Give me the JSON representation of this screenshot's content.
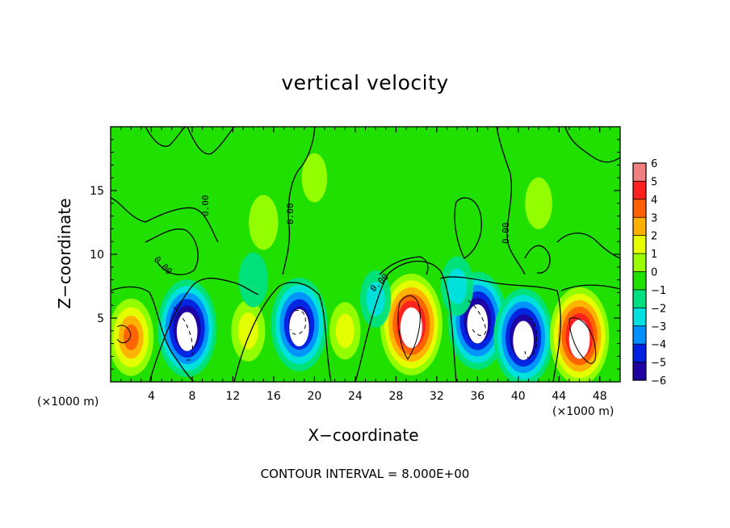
{
  "chart_data": {
    "type": "heatmap",
    "title": "vertical velocity",
    "xlabel": "X−coordinate",
    "ylabel": "Z−coordinate",
    "x_unit_label": "(×1000 m)",
    "x_unit_label_right": "(×1000 m)",
    "xlim": [
      0,
      50
    ],
    "ylim": [
      0,
      20
    ],
    "x_ticks": [
      4,
      8,
      12,
      16,
      20,
      24,
      28,
      32,
      36,
      40,
      44,
      48
    ],
    "y_ticks": [
      5,
      10,
      15
    ],
    "colorbar": {
      "levels": [
        6,
        5,
        4,
        3,
        2,
        1,
        0,
        -1,
        -2,
        -3,
        -4,
        -5,
        -6
      ],
      "labels": [
        "6",
        "5",
        "4",
        "3",
        "2",
        "1",
        "0",
        "−1",
        "−2",
        "−3",
        "−4",
        "−5",
        "−6"
      ],
      "colors": [
        "#f08080",
        "#ff2020",
        "#ff6000",
        "#ffb000",
        "#e8ff00",
        "#9aff00",
        "#20e000",
        "#00e080",
        "#00e0e0",
        "#0090ff",
        "#0020e0",
        "#2000a0",
        "#8000c0"
      ]
    },
    "contour_labels": [
      "0.00",
      "0.00",
      "0.00",
      "0.00",
      "0.00"
    ],
    "footnote": "CONTOUR INTERVAL = 8.000E+00",
    "features": [
      {
        "x": 2,
        "z": 3.5,
        "w": 4.0
      },
      {
        "x": 7.5,
        "z": 4.2,
        "w": -6.5
      },
      {
        "x": 13.5,
        "z": 4.0,
        "w": 2.0
      },
      {
        "x": 18.5,
        "z": 4.5,
        "w": -6.0
      },
      {
        "x": 23,
        "z": 4.0,
        "w": 1.5
      },
      {
        "x": 29.5,
        "z": 4.5,
        "w": 7.0
      },
      {
        "x": 36,
        "z": 4.8,
        "w": -6.5
      },
      {
        "x": 40.5,
        "z": 3.5,
        "w": -6.5
      },
      {
        "x": 46,
        "z": 3.6,
        "w": 6.5
      },
      {
        "x": 26,
        "z": 6.5,
        "w": -1.5
      },
      {
        "x": 14,
        "z": 8.0,
        "w": -1.2
      },
      {
        "x": 34,
        "z": 7.5,
        "w": -1.8
      },
      {
        "x": 15,
        "z": 12.5,
        "w": 1.2
      },
      {
        "x": 42,
        "z": 14.0,
        "w": 0.8
      },
      {
        "x": 20,
        "z": 16.0,
        "w": 0.5
      }
    ]
  }
}
